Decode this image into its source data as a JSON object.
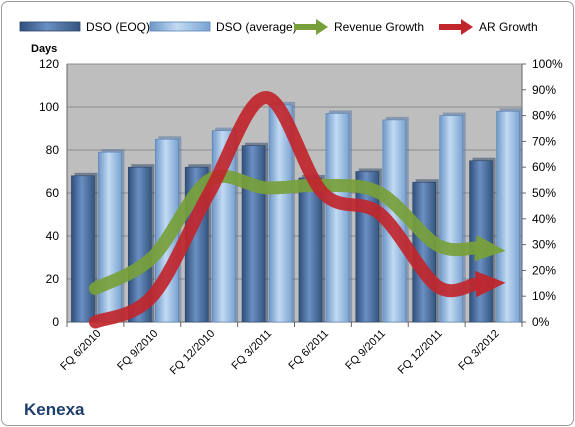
{
  "company": "Kenexa",
  "chart_data": {
    "type": "bar",
    "categories": [
      "FQ 6/2010",
      "FQ 9/2010",
      "FQ 12/2010",
      "FQ 3/2011",
      "FQ 6/2011",
      "FQ 9/2011",
      "FQ 12/2011",
      "FQ 3/2012"
    ],
    "series": [
      {
        "name": "DSO (EOQ)",
        "type": "bar",
        "axis": "left",
        "color": "#4a6b9a",
        "values": [
          68,
          72,
          72,
          82,
          67,
          70,
          65,
          75
        ]
      },
      {
        "name": "DSO (average)",
        "type": "bar",
        "axis": "left",
        "color": "#8fb3de",
        "values": [
          79,
          85,
          89,
          101,
          97,
          94,
          96,
          98
        ]
      },
      {
        "name": "Revenue Growth",
        "type": "line-arrow",
        "axis": "right",
        "color": "#77a03a",
        "values": [
          0.13,
          0.25,
          0.55,
          0.52,
          0.53,
          0.5,
          0.3,
          0.28
        ]
      },
      {
        "name": "AR Growth",
        "type": "line-arrow",
        "axis": "right",
        "color": "#c0262c",
        "values": [
          0.0,
          0.1,
          0.5,
          0.87,
          0.5,
          0.42,
          0.14,
          0.15
        ]
      }
    ],
    "ylabel": "Days",
    "ylim": [
      0,
      120
    ],
    "yticks": [
      "0",
      "20",
      "40",
      "60",
      "80",
      "100",
      "120"
    ],
    "y2lim": [
      0,
      1
    ],
    "y2ticks": [
      "0%",
      "10%",
      "20%",
      "30%",
      "40%",
      "50%",
      "60%",
      "70%",
      "80%",
      "90%",
      "100%"
    ],
    "legend_position": "top",
    "grid": true
  }
}
